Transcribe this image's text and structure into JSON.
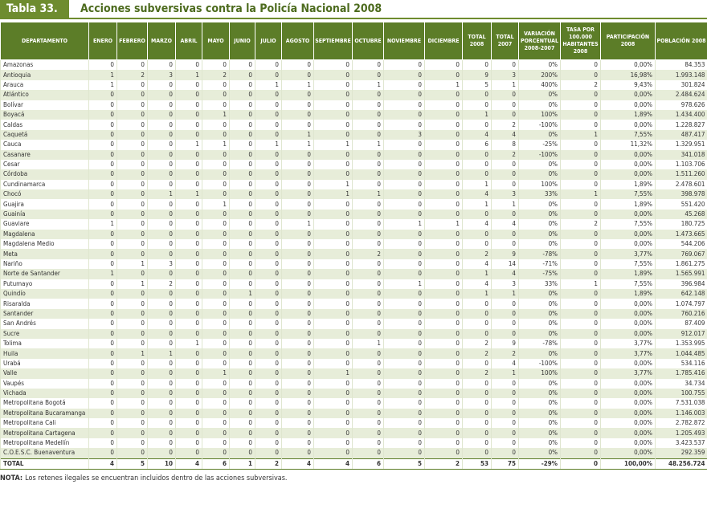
{
  "header": {
    "label": "Tabla 33.",
    "title": "Acciones subversivas contra la Policía Nacional 2008"
  },
  "table": {
    "columns": [
      "DEPARTAMENTO",
      "ENERO",
      "FEBRERO",
      "MARZO",
      "ABRIL",
      "MAYO",
      "JUNIO",
      "JULIO",
      "AGOSTO",
      "SEPTIEMBRE",
      "OCTUBRE",
      "NOVIEMBRE",
      "DICIEMBRE",
      "TOTAL 2008",
      "TOTAL 2007",
      "VARIACIÓN PORCENTUAL 2008-2007",
      "TASA POR 100.000 HABITANTES 2008",
      "PARTICIPACIÓN 2008",
      "POBLACIÓN 2008"
    ],
    "rows": [
      [
        "Amazonas",
        0,
        0,
        0,
        0,
        0,
        0,
        0,
        0,
        0,
        0,
        0,
        0,
        0,
        0,
        "0%",
        0,
        "0,00%",
        "84.353"
      ],
      [
        "Antioquia",
        1,
        2,
        3,
        1,
        2,
        0,
        0,
        0,
        0,
        0,
        0,
        0,
        9,
        3,
        "200%",
        0,
        "16,98%",
        "1.993.148"
      ],
      [
        "Arauca",
        1,
        0,
        0,
        0,
        0,
        0,
        1,
        1,
        0,
        1,
        0,
        1,
        5,
        1,
        "400%",
        2,
        "9,43%",
        "301.824"
      ],
      [
        "Atlántico",
        0,
        0,
        0,
        0,
        0,
        0,
        0,
        0,
        0,
        0,
        0,
        0,
        0,
        0,
        "0%",
        0,
        "0,00%",
        "2.484.624"
      ],
      [
        "Bolívar",
        0,
        0,
        0,
        0,
        0,
        0,
        0,
        0,
        0,
        0,
        0,
        0,
        0,
        0,
        "0%",
        0,
        "0,00%",
        "978.626"
      ],
      [
        "Boyacá",
        0,
        0,
        0,
        0,
        1,
        0,
        0,
        0,
        0,
        0,
        0,
        0,
        1,
        0,
        "100%",
        0,
        "1,89%",
        "1.434.400"
      ],
      [
        "Caldas",
        0,
        0,
        0,
        0,
        0,
        0,
        0,
        0,
        0,
        0,
        0,
        0,
        0,
        2,
        "-100%",
        0,
        "0,00%",
        "1.228.827"
      ],
      [
        "Caquetá",
        0,
        0,
        0,
        0,
        0,
        0,
        0,
        1,
        0,
        0,
        3,
        0,
        4,
        4,
        "0%",
        1,
        "7,55%",
        "487.417"
      ],
      [
        "Cauca",
        0,
        0,
        0,
        1,
        1,
        0,
        1,
        1,
        1,
        1,
        0,
        0,
        6,
        8,
        "-25%",
        0,
        "11,32%",
        "1.329.951"
      ],
      [
        "Casanare",
        0,
        0,
        0,
        0,
        0,
        0,
        0,
        0,
        0,
        0,
        0,
        0,
        0,
        2,
        "-100%",
        0,
        "0,00%",
        "341.018"
      ],
      [
        "Cesar",
        0,
        0,
        0,
        0,
        0,
        0,
        0,
        0,
        0,
        0,
        0,
        0,
        0,
        0,
        "0%",
        0,
        "0,00%",
        "1.103.706"
      ],
      [
        "Córdoba",
        0,
        0,
        0,
        0,
        0,
        0,
        0,
        0,
        0,
        0,
        0,
        0,
        0,
        0,
        "0%",
        0,
        "0,00%",
        "1.511.260"
      ],
      [
        "Cundinamarca",
        0,
        0,
        0,
        0,
        0,
        0,
        0,
        0,
        1,
        0,
        0,
        0,
        1,
        0,
        "100%",
        0,
        "1,89%",
        "2.478.601"
      ],
      [
        "Chocó",
        0,
        0,
        1,
        1,
        0,
        0,
        0,
        0,
        1,
        1,
        0,
        0,
        4,
        3,
        "33%",
        1,
        "7,55%",
        "398.978"
      ],
      [
        "Guajira",
        0,
        0,
        0,
        0,
        1,
        0,
        0,
        0,
        0,
        0,
        0,
        0,
        1,
        1,
        "0%",
        0,
        "1,89%",
        "551.420"
      ],
      [
        "Guainía",
        0,
        0,
        0,
        0,
        0,
        0,
        0,
        0,
        0,
        0,
        0,
        0,
        0,
        0,
        "0%",
        0,
        "0,00%",
        "45.268"
      ],
      [
        "Guaviare",
        1,
        0,
        0,
        0,
        0,
        0,
        0,
        1,
        0,
        0,
        1,
        1,
        4,
        4,
        "0%",
        2,
        "7,55%",
        "180.725"
      ],
      [
        "Magdalena",
        0,
        0,
        0,
        0,
        0,
        0,
        0,
        0,
        0,
        0,
        0,
        0,
        0,
        0,
        "0%",
        0,
        "0,00%",
        "1.473.665"
      ],
      [
        "Magdalena Medio",
        0,
        0,
        0,
        0,
        0,
        0,
        0,
        0,
        0,
        0,
        0,
        0,
        0,
        0,
        "0%",
        0,
        "0,00%",
        "544.206"
      ],
      [
        "Meta",
        0,
        0,
        0,
        0,
        0,
        0,
        0,
        0,
        0,
        2,
        0,
        0,
        2,
        9,
        "-78%",
        0,
        "3,77%",
        "769.067"
      ],
      [
        "Nariño",
        0,
        1,
        3,
        0,
        0,
        0,
        0,
        0,
        0,
        0,
        0,
        0,
        4,
        14,
        "-71%",
        0,
        "7,55%",
        "1.861.275"
      ],
      [
        "Norte de Santander",
        1,
        0,
        0,
        0,
        0,
        0,
        0,
        0,
        0,
        0,
        0,
        0,
        1,
        4,
        "-75%",
        0,
        "1,89%",
        "1.565.991"
      ],
      [
        "Putumayo",
        0,
        1,
        2,
        0,
        0,
        0,
        0,
        0,
        0,
        0,
        1,
        0,
        4,
        3,
        "33%",
        1,
        "7,55%",
        "396.984"
      ],
      [
        "Quindío",
        0,
        0,
        0,
        0,
        0,
        1,
        0,
        0,
        0,
        0,
        0,
        0,
        1,
        1,
        "0%",
        0,
        "1,89%",
        "642.148"
      ],
      [
        "Risaralda",
        0,
        0,
        0,
        0,
        0,
        0,
        0,
        0,
        0,
        0,
        0,
        0,
        0,
        0,
        "0%",
        0,
        "0,00%",
        "1.074.797"
      ],
      [
        "Santander",
        0,
        0,
        0,
        0,
        0,
        0,
        0,
        0,
        0,
        0,
        0,
        0,
        0,
        0,
        "0%",
        0,
        "0,00%",
        "760.216"
      ],
      [
        "San Andrés",
        0,
        0,
        0,
        0,
        0,
        0,
        0,
        0,
        0,
        0,
        0,
        0,
        0,
        0,
        "0%",
        0,
        "0,00%",
        "87.409"
      ],
      [
        "Sucre",
        0,
        0,
        0,
        0,
        0,
        0,
        0,
        0,
        0,
        0,
        0,
        0,
        0,
        0,
        "0%",
        0,
        "0,00%",
        "912.017"
      ],
      [
        "Tolima",
        0,
        0,
        0,
        1,
        0,
        0,
        0,
        0,
        0,
        1,
        0,
        0,
        2,
        9,
        "-78%",
        0,
        "3,77%",
        "1.353.995"
      ],
      [
        "Huila",
        0,
        1,
        1,
        0,
        0,
        0,
        0,
        0,
        0,
        0,
        0,
        0,
        2,
        2,
        "0%",
        0,
        "3,77%",
        "1.044.485"
      ],
      [
        "Urabá",
        0,
        0,
        0,
        0,
        0,
        0,
        0,
        0,
        0,
        0,
        0,
        0,
        0,
        4,
        "-100%",
        0,
        "0,00%",
        "534.116"
      ],
      [
        "Valle",
        0,
        0,
        0,
        0,
        1,
        0,
        0,
        0,
        1,
        0,
        0,
        0,
        2,
        1,
        "100%",
        0,
        "3,77%",
        "1.785.416"
      ],
      [
        "Vaupés",
        0,
        0,
        0,
        0,
        0,
        0,
        0,
        0,
        0,
        0,
        0,
        0,
        0,
        0,
        "0%",
        0,
        "0,00%",
        "34.734"
      ],
      [
        "Vichada",
        0,
        0,
        0,
        0,
        0,
        0,
        0,
        0,
        0,
        0,
        0,
        0,
        0,
        0,
        "0%",
        0,
        "0,00%",
        "100.755"
      ],
      [
        "Metropolitana Bogotá",
        0,
        0,
        0,
        0,
        0,
        0,
        0,
        0,
        0,
        0,
        0,
        0,
        0,
        0,
        "0%",
        0,
        "0,00%",
        "7.531.038"
      ],
      [
        "Metropolitana Bucaramanga",
        0,
        0,
        0,
        0,
        0,
        0,
        0,
        0,
        0,
        0,
        0,
        0,
        0,
        0,
        "0%",
        0,
        "0,00%",
        "1.146.003"
      ],
      [
        "Metropolitana Cali",
        0,
        0,
        0,
        0,
        0,
        0,
        0,
        0,
        0,
        0,
        0,
        0,
        0,
        0,
        "0%",
        0,
        "0,00%",
        "2.782.872"
      ],
      [
        "Metropolitana Cartagena",
        0,
        0,
        0,
        0,
        0,
        0,
        0,
        0,
        0,
        0,
        0,
        0,
        0,
        0,
        "0%",
        0,
        "0,00%",
        "1.205.493"
      ],
      [
        "Metropolitana Medellín",
        0,
        0,
        0,
        0,
        0,
        0,
        0,
        0,
        0,
        0,
        0,
        0,
        0,
        0,
        "0%",
        0,
        "0,00%",
        "3.423.537"
      ],
      [
        "C.O.E.S.C. Buenaventura",
        0,
        0,
        0,
        0,
        0,
        0,
        0,
        0,
        0,
        0,
        0,
        0,
        0,
        0,
        "0%",
        0,
        "0,00%",
        "292.359"
      ]
    ],
    "total": [
      "TOTAL",
      4,
      5,
      10,
      4,
      6,
      1,
      2,
      4,
      4,
      6,
      5,
      2,
      53,
      75,
      "-29%",
      0,
      "100,00%",
      "48.256.724"
    ]
  },
  "note": {
    "label": "NOTA:",
    "text": "Los retenes ilegales se encuentran incluidos dentro de las acciones subversivas."
  }
}
